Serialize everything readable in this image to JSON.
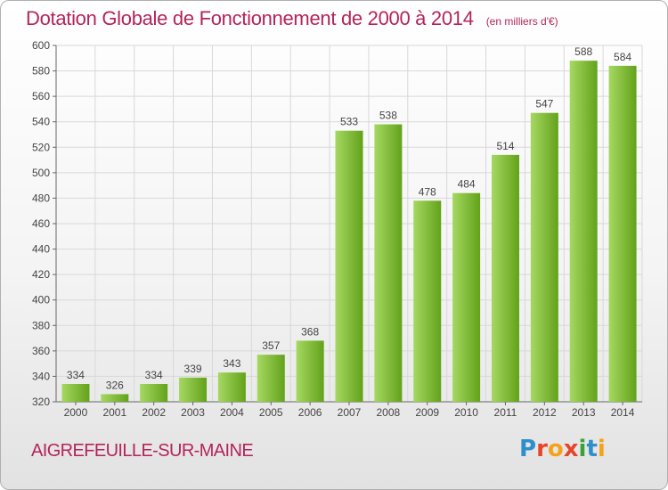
{
  "header": {
    "title": "Dotation Globale de Fonctionnement de 2000 à 2014",
    "unit": "(en milliers d'€)"
  },
  "footer": {
    "place": "AIGREFEUILLE-SUR-MAINE",
    "logo_letters": [
      "P",
      "r",
      "o",
      "x",
      "i",
      "t",
      "i"
    ],
    "logo_colors": [
      "#2f8fcd",
      "#e8442a",
      "#f5a21a",
      "#e8442a",
      "#3aa13a",
      "#2f8fcd",
      "#f5a21a"
    ]
  },
  "colors": {
    "title": "#b4245a",
    "bar_light": "#a6d862",
    "bar_dark": "#62a21a",
    "grid": "#d8d8d8"
  },
  "chart_data": {
    "type": "bar",
    "categories": [
      "2000",
      "2001",
      "2002",
      "2003",
      "2004",
      "2005",
      "2006",
      "2007",
      "2008",
      "2009",
      "2010",
      "2011",
      "2012",
      "2013",
      "2014"
    ],
    "values": [
      334,
      326,
      334,
      339,
      343,
      357,
      368,
      533,
      538,
      478,
      484,
      514,
      547,
      588,
      584
    ],
    "title": "Dotation Globale de Fonctionnement de 2000 à 2014",
    "xlabel": "",
    "ylabel": "",
    "ylim": [
      320,
      600
    ],
    "yticks": [
      320,
      340,
      360,
      380,
      400,
      420,
      440,
      460,
      480,
      500,
      520,
      540,
      560,
      580,
      600
    ],
    "grid": true,
    "data_labels": true
  }
}
